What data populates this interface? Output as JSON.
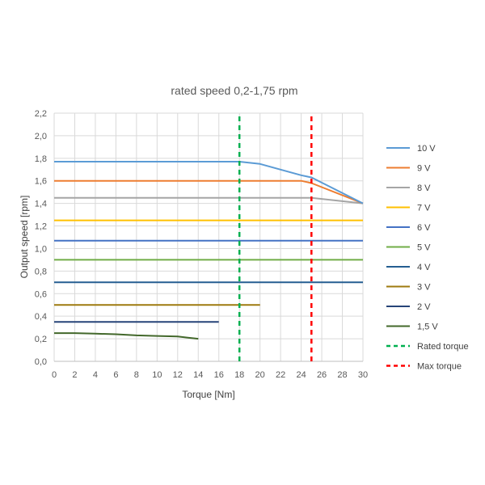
{
  "chart_data": {
    "type": "line",
    "title": "rated speed 0,2-1,75 rpm",
    "xlabel": "Torque [Nm]",
    "ylabel": "Output speed [rpm]",
    "xlim": [
      0,
      30
    ],
    "ylim": [
      0,
      2.2
    ],
    "x_ticks": [
      0,
      2,
      4,
      6,
      8,
      10,
      12,
      14,
      16,
      18,
      20,
      22,
      24,
      26,
      28,
      30
    ],
    "x_tick_labels": [
      "0",
      "2",
      "4",
      "6",
      "8",
      "10",
      "12",
      "14",
      "16",
      "18",
      "20",
      "22",
      "24",
      "26",
      "28",
      "30"
    ],
    "y_ticks": [
      0,
      0.2,
      0.4,
      0.6,
      0.8,
      1.0,
      1.2,
      1.4,
      1.6,
      1.8,
      2.0,
      2.2
    ],
    "y_tick_labels": [
      "0,0",
      "0,2",
      "0,4",
      "0,6",
      "0,8",
      "1,0",
      "1,2",
      "1,4",
      "1,6",
      "1,8",
      "2,0",
      "2,2"
    ],
    "grid": true,
    "legend_position": "right",
    "series": [
      {
        "name": "10 V",
        "color": "#5b9bd5",
        "dash": false,
        "points": [
          [
            0,
            1.77
          ],
          [
            18,
            1.77
          ],
          [
            20,
            1.75
          ],
          [
            22,
            1.7
          ],
          [
            24,
            1.65
          ],
          [
            25,
            1.63
          ],
          [
            30,
            1.4
          ]
        ]
      },
      {
        "name": "9 V",
        "color": "#ed7d31",
        "dash": false,
        "points": [
          [
            0,
            1.6
          ],
          [
            24,
            1.6
          ],
          [
            25,
            1.58
          ],
          [
            30,
            1.4
          ]
        ]
      },
      {
        "name": "8 V",
        "color": "#a5a5a5",
        "dash": false,
        "points": [
          [
            0,
            1.45
          ],
          [
            25,
            1.45
          ],
          [
            30,
            1.4
          ]
        ]
      },
      {
        "name": "7 V",
        "color": "#ffc000",
        "dash": false,
        "points": [
          [
            0,
            1.25
          ],
          [
            30,
            1.25
          ]
        ]
      },
      {
        "name": "6 V",
        "color": "#4472c4",
        "dash": false,
        "points": [
          [
            0,
            1.07
          ],
          [
            30,
            1.07
          ]
        ]
      },
      {
        "name": "5 V",
        "color": "#70ad47",
        "dash": false,
        "points": [
          [
            0,
            0.9
          ],
          [
            30,
            0.9
          ]
        ]
      },
      {
        "name": "4 V",
        "color": "#255e91",
        "dash": false,
        "points": [
          [
            0,
            0.7
          ],
          [
            30,
            0.7
          ]
        ]
      },
      {
        "name": "3 V",
        "color": "#9e7a0f",
        "dash": false,
        "points": [
          [
            0,
            0.5
          ],
          [
            20,
            0.5
          ]
        ]
      },
      {
        "name": "2 V",
        "color": "#264478",
        "dash": false,
        "points": [
          [
            0,
            0.35
          ],
          [
            16,
            0.35
          ]
        ]
      },
      {
        "name": "1,5 V",
        "color": "#43682b",
        "dash": false,
        "points": [
          [
            0,
            0.25
          ],
          [
            2,
            0.25
          ],
          [
            4,
            0.245
          ],
          [
            6,
            0.24
          ],
          [
            8,
            0.23
          ],
          [
            10,
            0.225
          ],
          [
            12,
            0.22
          ],
          [
            13,
            0.21
          ],
          [
            14,
            0.2
          ]
        ]
      },
      {
        "name": "Rated torque",
        "color": "#00b050",
        "dash": true,
        "points": [
          [
            18,
            0
          ],
          [
            18,
            2.2
          ]
        ]
      },
      {
        "name": "Max torque",
        "color": "#ff0000",
        "dash": true,
        "points": [
          [
            25,
            0
          ],
          [
            25,
            2.2
          ]
        ]
      }
    ]
  }
}
